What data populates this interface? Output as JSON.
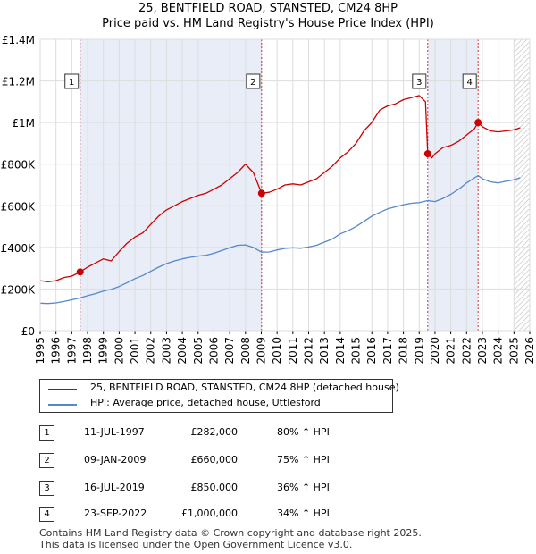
{
  "chart_data": {
    "type": "line",
    "title": "25, BENTFIELD ROAD, STANSTED, CM24 8HP",
    "subtitle": "Price paid vs. HM Land Registry's House Price Index (HPI)",
    "xlim": [
      1995,
      2026
    ],
    "ylim": [
      0,
      1400000
    ],
    "x_ticks": [
      "1995",
      "1996",
      "1997",
      "1998",
      "1999",
      "2000",
      "2001",
      "2002",
      "2003",
      "2004",
      "2005",
      "2006",
      "2007",
      "2008",
      "2009",
      "2010",
      "2011",
      "2012",
      "2013",
      "2014",
      "2015",
      "2016",
      "2017",
      "2018",
      "2019",
      "2020",
      "2021",
      "2022",
      "2023",
      "2024",
      "2025",
      "2026"
    ],
    "y_ticks": [
      {
        "value": 0,
        "label": "£0"
      },
      {
        "value": 200000,
        "label": "£200K"
      },
      {
        "value": 400000,
        "label": "£400K"
      },
      {
        "value": 600000,
        "label": "£600K"
      },
      {
        "value": 800000,
        "label": "£800K"
      },
      {
        "value": 1000000,
        "label": "£1M"
      },
      {
        "value": 1200000,
        "label": "£1.2M"
      },
      {
        "value": 1400000,
        "label": "£1.4M"
      }
    ],
    "series": [
      {
        "name": "25, BENTFIELD ROAD, STANSTED, CM24 8HP (detached house)",
        "color": "#cc0000",
        "x": [
          1995.0,
          1995.5,
          1996.0,
          1996.5,
          1997.0,
          1997.53,
          1998.0,
          1998.5,
          1999.0,
          1999.5,
          2000.0,
          2000.5,
          2001.0,
          2001.5,
          2002.0,
          2002.5,
          2003.0,
          2003.5,
          2004.0,
          2004.5,
          2005.0,
          2005.5,
          2006.0,
          2006.5,
          2007.0,
          2007.5,
          2008.0,
          2008.5,
          2009.02,
          2009.5,
          2010.0,
          2010.5,
          2011.0,
          2011.5,
          2012.0,
          2012.5,
          2013.0,
          2013.5,
          2014.0,
          2014.5,
          2015.0,
          2015.5,
          2016.0,
          2016.5,
          2017.0,
          2017.5,
          2018.0,
          2018.5,
          2019.0,
          2019.4,
          2019.54,
          2019.8,
          2020.0,
          2020.5,
          2021.0,
          2021.5,
          2022.0,
          2022.5,
          2022.73,
          2023.0,
          2023.5,
          2024.0,
          2024.5,
          2025.0,
          2025.4
        ],
        "y": [
          240000,
          235000,
          240000,
          255000,
          262000,
          282000,
          305000,
          325000,
          345000,
          335000,
          380000,
          420000,
          450000,
          470000,
          510000,
          550000,
          580000,
          600000,
          620000,
          635000,
          650000,
          660000,
          680000,
          700000,
          730000,
          760000,
          800000,
          760000,
          660000,
          665000,
          680000,
          700000,
          705000,
          700000,
          715000,
          730000,
          760000,
          790000,
          830000,
          860000,
          900000,
          960000,
          1000000,
          1060000,
          1080000,
          1090000,
          1110000,
          1120000,
          1130000,
          1100000,
          850000,
          830000,
          850000,
          880000,
          890000,
          910000,
          940000,
          970000,
          1000000,
          980000,
          960000,
          955000,
          960000,
          965000,
          975000
        ]
      },
      {
        "name": "HPI: Average price, detached house, Uttlesford",
        "color": "#5588cc",
        "x": [
          1995.0,
          1995.5,
          1996.0,
          1996.5,
          1997.0,
          1997.53,
          1998.0,
          1998.5,
          1999.0,
          1999.5,
          2000.0,
          2000.5,
          2001.0,
          2001.5,
          2002.0,
          2002.5,
          2003.0,
          2003.5,
          2004.0,
          2004.5,
          2005.0,
          2005.5,
          2006.0,
          2006.5,
          2007.0,
          2007.5,
          2008.0,
          2008.5,
          2009.02,
          2009.5,
          2010.0,
          2010.5,
          2011.0,
          2011.5,
          2012.0,
          2012.5,
          2013.0,
          2013.5,
          2014.0,
          2014.5,
          2015.0,
          2015.5,
          2016.0,
          2016.5,
          2017.0,
          2017.5,
          2018.0,
          2018.5,
          2019.0,
          2019.54,
          2020.0,
          2020.5,
          2021.0,
          2021.5,
          2022.0,
          2022.73,
          2023.0,
          2023.5,
          2024.0,
          2024.5,
          2025.0,
          2025.4
        ],
        "y": [
          132000,
          130000,
          133000,
          140000,
          148000,
          157000,
          168000,
          178000,
          190000,
          198000,
          212000,
          230000,
          250000,
          265000,
          285000,
          305000,
          322000,
          335000,
          345000,
          352000,
          358000,
          362000,
          372000,
          385000,
          398000,
          410000,
          412000,
          400000,
          377000,
          378000,
          388000,
          395000,
          398000,
          396000,
          402000,
          410000,
          425000,
          440000,
          465000,
          480000,
          500000,
          525000,
          550000,
          568000,
          585000,
          595000,
          605000,
          612000,
          615000,
          625000,
          620000,
          635000,
          655000,
          680000,
          710000,
          745000,
          730000,
          715000,
          710000,
          718000,
          725000,
          735000
        ]
      }
    ],
    "transactions": [
      {
        "label": "1",
        "x": 1997.53,
        "y": 282000
      },
      {
        "label": "2",
        "x": 2009.02,
        "y": 660000
      },
      {
        "label": "3",
        "x": 2019.54,
        "y": 850000
      },
      {
        "label": "4",
        "x": 2022.73,
        "y": 1000000
      }
    ],
    "shaded_periods": [
      [
        1997.53,
        2009.02
      ],
      [
        2019.54,
        2022.73
      ]
    ],
    "hatched_from": 2025.0
  },
  "legend": {
    "items": [
      {
        "label": "25, BENTFIELD ROAD, STANSTED, CM24 8HP (detached house)",
        "color": "#cc0000"
      },
      {
        "label": "HPI: Average price, detached house, Uttlesford",
        "color": "#5588cc"
      }
    ]
  },
  "table": [
    {
      "num": "1",
      "date": "11-JUL-1997",
      "price": "£282,000",
      "hpi": "80% ↑ HPI"
    },
    {
      "num": "2",
      "date": "09-JAN-2009",
      "price": "£660,000",
      "hpi": "75% ↑ HPI"
    },
    {
      "num": "3",
      "date": "16-JUL-2019",
      "price": "£850,000",
      "hpi": "36% ↑ HPI"
    },
    {
      "num": "4",
      "date": "23-SEP-2022",
      "price": "£1,000,000",
      "hpi": "34% ↑ HPI"
    }
  ],
  "footer": {
    "line1": "Contains HM Land Registry data © Crown copyright and database right 2025.",
    "line2": "This data is licensed under the Open Government Licence v3.0."
  }
}
